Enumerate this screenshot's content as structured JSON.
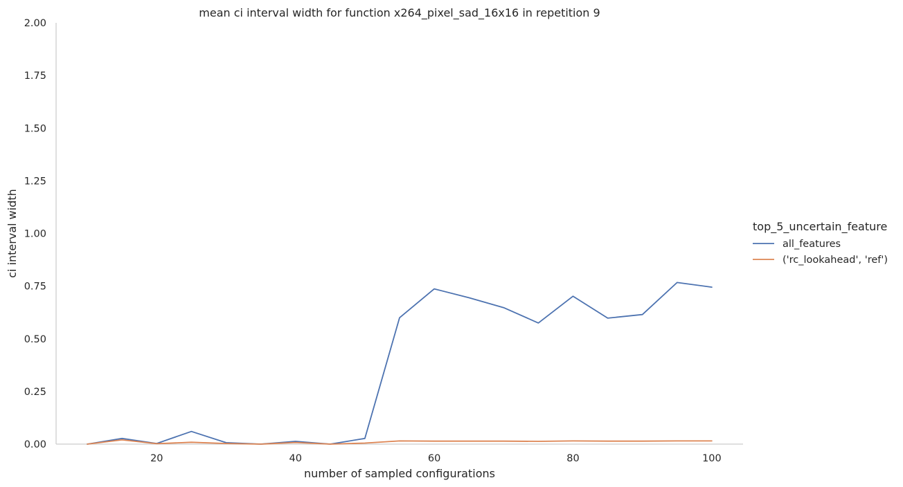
{
  "chart_data": {
    "type": "line",
    "title": "mean ci interval width for function x264_pixel_sad_16x16 in repetition 9",
    "xlabel": "number of sampled configurations",
    "ylabel": "ci interval width",
    "xlim": [
      5.5,
      104.5
    ],
    "ylim": [
      0,
      2.0
    ],
    "x_ticks": [
      20,
      40,
      60,
      80,
      100
    ],
    "x_tick_labels": [
      "20",
      "40",
      "60",
      "80",
      "100"
    ],
    "y_ticks": [
      0,
      0.25,
      0.5,
      0.75,
      1.0,
      1.25,
      1.5,
      1.75,
      2.0
    ],
    "y_tick_labels": [
      "0.00",
      "0.25",
      "0.50",
      "0.75",
      "1.00",
      "1.25",
      "1.50",
      "1.75",
      "2.00"
    ],
    "grid": false,
    "legend": {
      "title": "top_5_uncertain_feature",
      "placement": "right"
    },
    "x": [
      10,
      15,
      20,
      25,
      30,
      35,
      40,
      45,
      50,
      55,
      60,
      65,
      70,
      75,
      80,
      85,
      90,
      95,
      100
    ],
    "series": [
      {
        "name": "all_features",
        "color": "#4c72b0",
        "values": [
          0.0,
          0.027,
          0.003,
          0.06,
          0.007,
          0.0,
          0.013,
          0.0,
          0.027,
          0.6,
          0.737,
          0.695,
          0.648,
          0.575,
          0.702,
          0.598,
          0.615,
          0.767,
          0.745
        ]
      },
      {
        "name": "('rc_lookahead', 'ref')",
        "color": "#dd8452",
        "values": [
          0.0,
          0.02,
          0.002,
          0.009,
          0.003,
          0.0,
          0.008,
          0.0,
          0.005,
          0.015,
          0.014,
          0.014,
          0.014,
          0.013,
          0.015,
          0.014,
          0.014,
          0.015,
          0.015
        ]
      }
    ]
  }
}
